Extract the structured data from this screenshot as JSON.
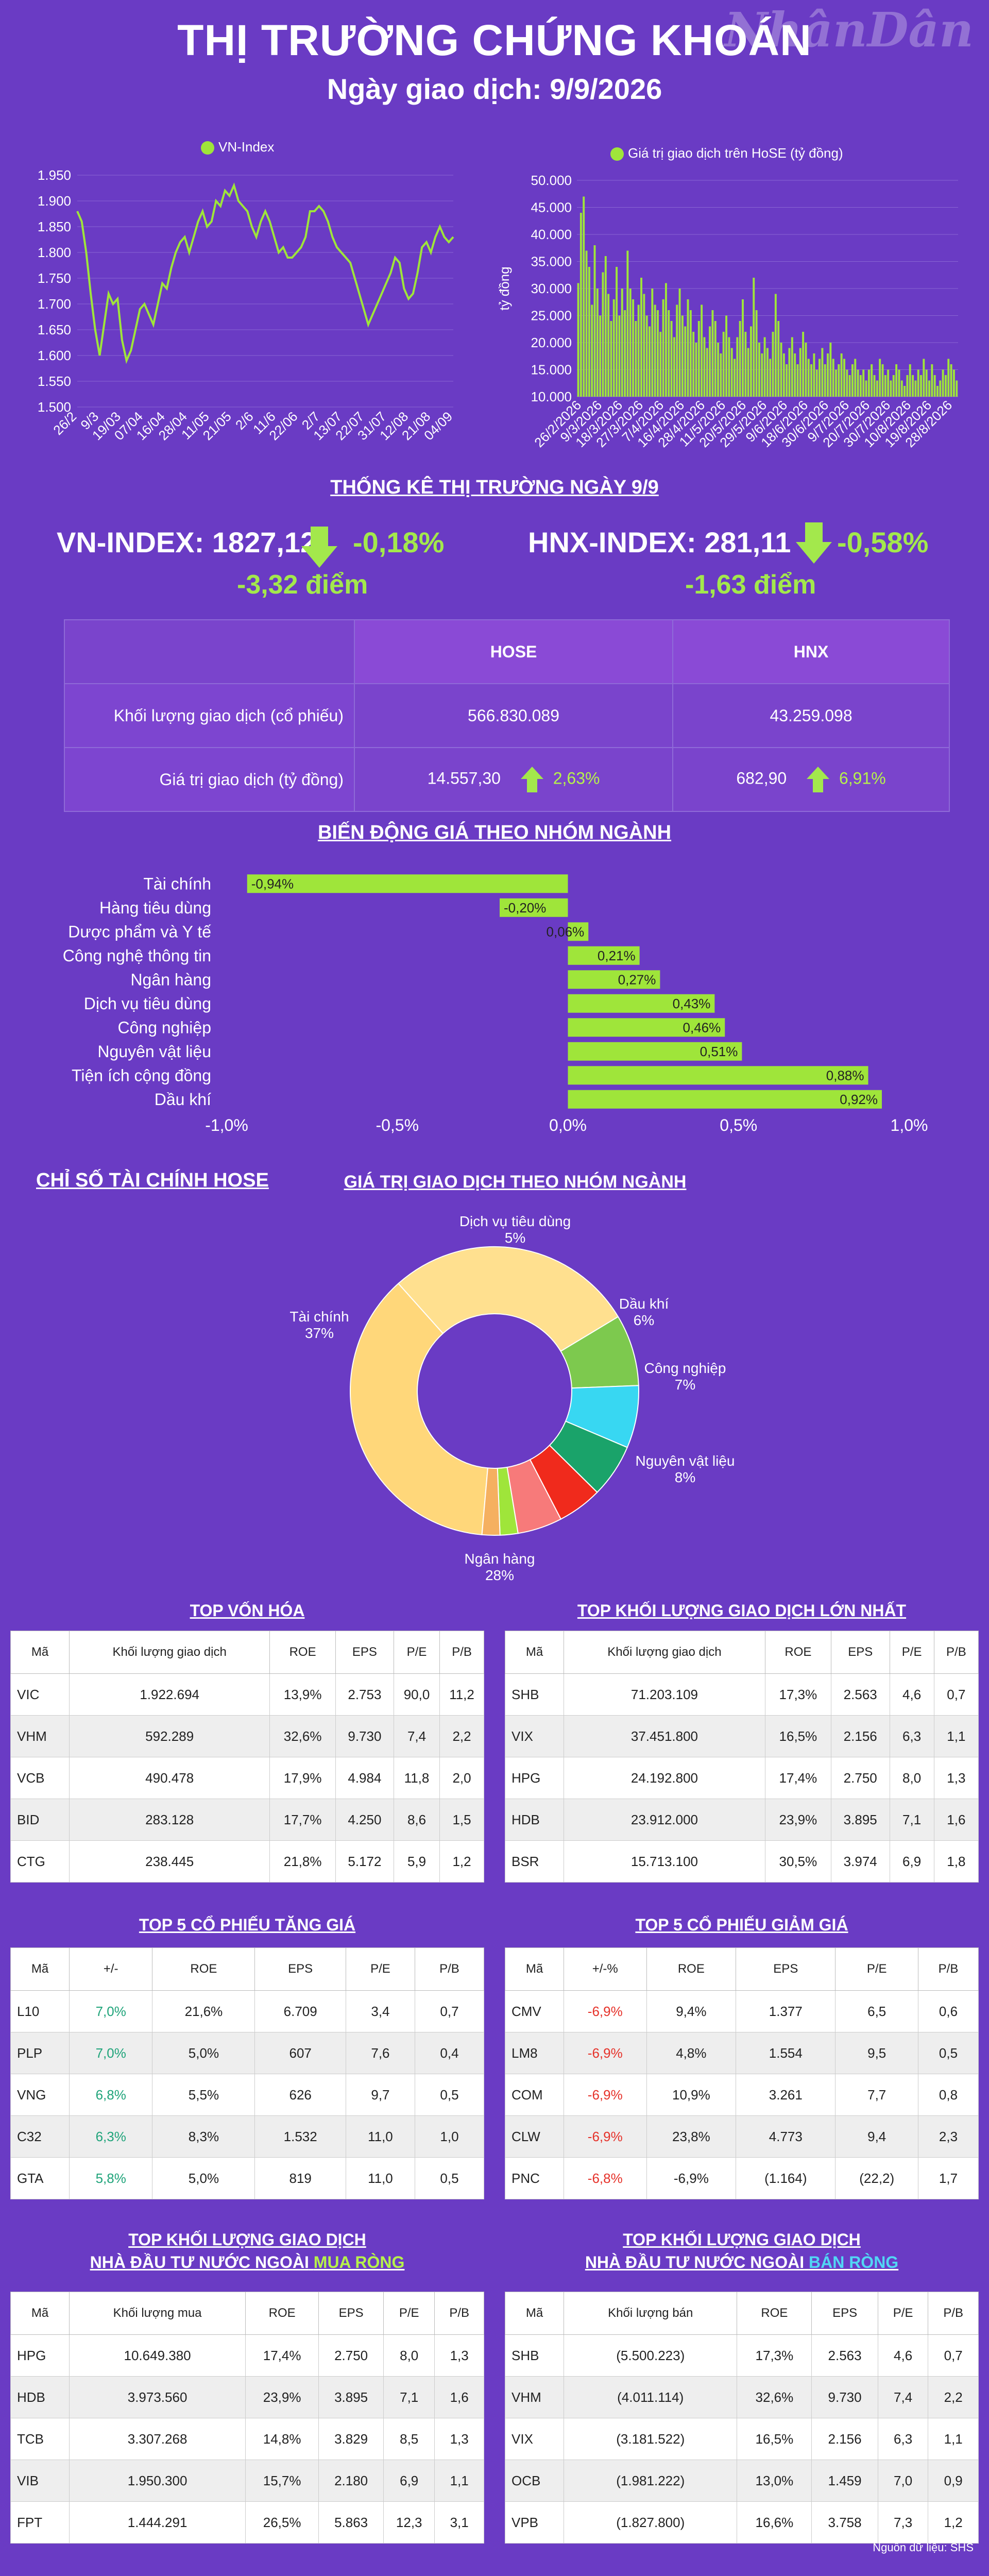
{
  "header": {
    "title": "THỊ TRƯỜNG CHỨNG KHOÁN",
    "subtitle": "Ngày giao dịch: 9/9/2026",
    "logo": "NhânDân"
  },
  "colors": {
    "background": "#6a3bc4",
    "accent": "#9fe53a",
    "up": "#1fa47a",
    "down": "#e6322a"
  },
  "chart_data": [
    {
      "type": "line",
      "legend": "VN-Index",
      "x_ticks": [
        "26/2",
        "9/3",
        "19/03",
        "07/04",
        "16/04",
        "28/04",
        "11/05",
        "21/05",
        "2/6",
        "11/6",
        "22/06",
        "2/7",
        "13/07",
        "22/07",
        "31/07",
        "12/08",
        "21/08",
        "04/09"
      ],
      "ylim": [
        1500,
        1950
      ],
      "y_ticks": [
        "1.500",
        "1.550",
        "1.600",
        "1.650",
        "1.700",
        "1.750",
        "1.800",
        "1.850",
        "1.900",
        "1.950"
      ],
      "values": [
        1880,
        1860,
        1800,
        1720,
        1650,
        1600,
        1660,
        1720,
        1700,
        1710,
        1630,
        1590,
        1610,
        1650,
        1690,
        1700,
        1680,
        1660,
        1700,
        1740,
        1730,
        1770,
        1800,
        1820,
        1830,
        1800,
        1830,
        1860,
        1880,
        1850,
        1860,
        1900,
        1890,
        1920,
        1910,
        1930,
        1900,
        1890,
        1880,
        1850,
        1830,
        1860,
        1880,
        1860,
        1830,
        1800,
        1810,
        1790,
        1790,
        1800,
        1810,
        1830,
        1880,
        1880,
        1890,
        1880,
        1860,
        1830,
        1810,
        1800,
        1790,
        1780,
        1750,
        1720,
        1690,
        1660,
        1680,
        1700,
        1720,
        1740,
        1760,
        1790,
        1780,
        1730,
        1710,
        1720,
        1760,
        1810,
        1820,
        1800,
        1830,
        1850,
        1830,
        1820,
        1830
      ]
    },
    {
      "type": "bar",
      "legend": "Giá trị giao dịch trên HoSE (tỷ đồng)",
      "ylabel": "tỷ đồng",
      "ylim": [
        10000,
        50000
      ],
      "y_ticks": [
        "10.000",
        "15.000",
        "20.000",
        "25.000",
        "30.000",
        "35.000",
        "40.000",
        "45.000",
        "50.000"
      ],
      "x_ticks": [
        "26/2/2026",
        "9/3/2026",
        "18/3/2026",
        "27/3/2026",
        "7/4/2026",
        "16/4/2026",
        "28/4/2026",
        "11/5/2026",
        "20/5/2026",
        "29/5/2026",
        "9/6/2026",
        "18/6/2026",
        "30/6/2026",
        "9/7/2026",
        "20/7/2026",
        "30/7/2026",
        "10/8/2026",
        "19/8/2026",
        "28/8/2026"
      ],
      "values": [
        31000,
        44000,
        47000,
        37000,
        34000,
        27000,
        38000,
        30000,
        25000,
        33000,
        36000,
        29000,
        24000,
        28000,
        34000,
        25000,
        30000,
        26000,
        37000,
        30000,
        28000,
        24000,
        27000,
        32000,
        29000,
        25000,
        23000,
        30000,
        27000,
        26000,
        22000,
        28000,
        31000,
        26000,
        24000,
        21000,
        27000,
        30000,
        25000,
        23000,
        28000,
        26000,
        22000,
        20000,
        24000,
        27000,
        21000,
        19000,
        23000,
        26000,
        24000,
        20000,
        18000,
        22000,
        25000,
        21000,
        19000,
        17000,
        21000,
        24000,
        28000,
        22000,
        19000,
        23000,
        32000,
        26000,
        20000,
        18000,
        21000,
        19000,
        17000,
        22000,
        29000,
        24000,
        20000,
        18000,
        16000,
        19000,
        21000,
        18000,
        16000,
        19000,
        22000,
        20000,
        17000,
        16000,
        18000,
        15000,
        17000,
        19000,
        16000,
        18000,
        20000,
        17000,
        15000,
        16000,
        18000,
        17000,
        15000,
        14000,
        16000,
        17000,
        15000,
        14000,
        15000,
        13000,
        15000,
        16000,
        14000,
        13000,
        17000,
        16000,
        14000,
        15000,
        13000,
        14000,
        16000,
        15000,
        13000,
        12000,
        14000,
        16000,
        14000,
        13000,
        15000,
        14000,
        17000,
        15000,
        13000,
        16000,
        14000,
        12000,
        13000,
        15000,
        14000,
        17000,
        16000,
        15000,
        13000
      ]
    },
    {
      "type": "bar",
      "orientation": "horizontal",
      "title": "BIẾN ĐỘNG GIÁ THEO NHÓM NGÀNH",
      "categories": [
        "Tài chính",
        "Hàng tiêu dùng",
        "Dược phẩm và Y tế",
        "Công nghệ thông tin",
        "Ngân hàng",
        "Dịch vụ tiêu dùng",
        "Công nghiệp",
        "Nguyên vật liệu",
        "Tiện ích cộng đồng",
        "Dầu khí"
      ],
      "values": [
        -0.94,
        -0.2,
        0.06,
        0.21,
        0.27,
        0.43,
        0.46,
        0.51,
        0.88,
        0.92
      ],
      "value_labels": [
        "-0,94%",
        "-0,20%",
        "0,06%",
        "0,21%",
        "0,27%",
        "0,43%",
        "0,46%",
        "0,51%",
        "0,88%",
        "0,92%"
      ],
      "xlim": [
        -1.0,
        1.0
      ],
      "x_ticks": [
        "-1,0%",
        "-0,5%",
        "0,0%",
        "0,5%",
        "1,0%"
      ]
    },
    {
      "type": "pie",
      "title": "GIÁ TRỊ GIAO DỊCH THEO NHÓM NGÀNH",
      "slices": [
        {
          "name": "Tài chính",
          "value": 37,
          "label": "37%",
          "color": "#ffd77a"
        },
        {
          "name": "Ngân hàng",
          "value": 28,
          "label": "28%",
          "color": "#ffe08f"
        },
        {
          "name": "Nguyên vật liệu",
          "value": 8,
          "label": "8%",
          "color": "#7dc94e"
        },
        {
          "name": "Công nghiệp",
          "value": 7,
          "label": "7%",
          "color": "#38d7f2"
        },
        {
          "name": "Dầu khí",
          "value": 6,
          "label": "6%",
          "color": "#1aa36a"
        },
        {
          "name": "Dịch vụ tiêu dùng",
          "value": 5,
          "label": "5%",
          "color": "#f02a1c"
        },
        {
          "name": "",
          "value": 5,
          "label": "",
          "color": "#f77a7a"
        },
        {
          "name": "",
          "value": 2,
          "label": "",
          "color": "#9fe53a"
        },
        {
          "name": "",
          "value": 2,
          "label": "",
          "color": "#f5b060"
        }
      ]
    }
  ],
  "stats_section": {
    "title": "THỐNG KÊ THỊ TRƯỜNG NGÀY 9/9",
    "vn_index": {
      "label": "VN-INDEX: 1827,12",
      "change": "-0,18%",
      "points": "-3,32 điểm"
    },
    "hnx_index": {
      "label": "HNX-INDEX: 281,11",
      "change": "-0,58%",
      "points": "-1,63 điểm"
    },
    "col_hose": "HOSE",
    "col_hnx": "HNX",
    "row_volume": {
      "label": "Khối lượng giao dịch (cổ phiếu)",
      "hose": "566.830.089",
      "hnx": "43.259.098"
    },
    "row_value": {
      "label": "Giá trị giao dịch (tỷ đồng)",
      "hose": "14.557,30",
      "hose_chg": "2,63%",
      "hnx": "682,90",
      "hnx_chg": "6,91%"
    }
  },
  "fin_title": "CHỈ SỐ TÀI CHÍNH HOSE",
  "tables": {
    "top_cap": {
      "title": "TOP VỐN HÓA",
      "headers": [
        "Mã",
        "Khối lượng giao dịch",
        "ROE",
        "EPS",
        "P/E",
        "P/B"
      ],
      "rows": [
        [
          "VIC",
          "1.922.694",
          "13,9%",
          "2.753",
          "90,0",
          "11,2"
        ],
        [
          "VHM",
          "592.289",
          "32,6%",
          "9.730",
          "7,4",
          "2,2"
        ],
        [
          "VCB",
          "490.478",
          "17,9%",
          "4.984",
          "11,8",
          "2,0"
        ],
        [
          "BID",
          "283.128",
          "17,7%",
          "4.250",
          "8,6",
          "1,5"
        ],
        [
          "CTG",
          "238.445",
          "21,8%",
          "5.172",
          "5,9",
          "1,2"
        ]
      ]
    },
    "top_volume": {
      "title": "TOP KHỐI LƯỢNG GIAO DỊCH LỚN NHẤT",
      "headers": [
        "Mã",
        "Khối lượng giao dịch",
        "ROE",
        "EPS",
        "P/E",
        "P/B"
      ],
      "rows": [
        [
          "SHB",
          "71.203.109",
          "17,3%",
          "2.563",
          "4,6",
          "0,7"
        ],
        [
          "VIX",
          "37.451.800",
          "16,5%",
          "2.156",
          "6,3",
          "1,1"
        ],
        [
          "HPG",
          "24.192.800",
          "17,4%",
          "2.750",
          "8,0",
          "1,3"
        ],
        [
          "HDB",
          "23.912.000",
          "23,9%",
          "3.895",
          "7,1",
          "1,6"
        ],
        [
          "BSR",
          "15.713.100",
          "30,5%",
          "3.974",
          "6,9",
          "1,8"
        ]
      ]
    },
    "top_gain": {
      "title": "TOP 5 CỔ PHIẾU TĂNG GIÁ",
      "headers": [
        "Mã",
        "+/-",
        "ROE",
        "EPS",
        "P/E",
        "P/B"
      ],
      "rows": [
        [
          "L10",
          "7,0%",
          "21,6%",
          "6.709",
          "3,4",
          "0,7"
        ],
        [
          "PLP",
          "7,0%",
          "5,0%",
          "607",
          "7,6",
          "0,4"
        ],
        [
          "VNG",
          "6,8%",
          "5,5%",
          "626",
          "9,7",
          "0,5"
        ],
        [
          "C32",
          "6,3%",
          "8,3%",
          "1.532",
          "11,0",
          "1,0"
        ],
        [
          "GTA",
          "5,8%",
          "5,0%",
          "819",
          "11,0",
          "0,5"
        ]
      ]
    },
    "top_loss": {
      "title": "TOP 5 CỔ PHIẾU GIẢM GIÁ",
      "headers": [
        "Mã",
        "+/-%",
        "ROE",
        "EPS",
        "P/E",
        "P/B"
      ],
      "rows": [
        [
          "CMV",
          "-6,9%",
          "9,4%",
          "1.377",
          "6,5",
          "0,6"
        ],
        [
          "LM8",
          "-6,9%",
          "4,8%",
          "1.554",
          "9,5",
          "0,5"
        ],
        [
          "COM",
          "-6,9%",
          "10,9%",
          "3.261",
          "7,7",
          "0,8"
        ],
        [
          "CLW",
          "-6,9%",
          "23,8%",
          "4.773",
          "9,4",
          "2,3"
        ],
        [
          "PNC",
          "-6,8%",
          "-6,9%",
          "(1.164)",
          "(22,2)",
          "1,7"
        ]
      ]
    },
    "foreign_buy": {
      "title_line1": "TOP KHỐI LƯỢNG GIAO DỊCH",
      "title_line2": "NHÀ ĐẦU TƯ NƯỚC NGOÀI",
      "title_hl": "MUA RÒNG",
      "headers": [
        "Mã",
        "Khối lượng mua",
        "ROE",
        "EPS",
        "P/E",
        "P/B"
      ],
      "rows": [
        [
          "HPG",
          "10.649.380",
          "17,4%",
          "2.750",
          "8,0",
          "1,3"
        ],
        [
          "HDB",
          "3.973.560",
          "23,9%",
          "3.895",
          "7,1",
          "1,6"
        ],
        [
          "TCB",
          "3.307.268",
          "14,8%",
          "3.829",
          "8,5",
          "1,3"
        ],
        [
          "VIB",
          "1.950.300",
          "15,7%",
          "2.180",
          "6,9",
          "1,1"
        ],
        [
          "FPT",
          "1.444.291",
          "26,5%",
          "5.863",
          "12,3",
          "3,1"
        ]
      ]
    },
    "foreign_sell": {
      "title_line1": "TOP KHỐI LƯỢNG GIAO DỊCH",
      "title_line2": "NHÀ ĐẦU TƯ NƯỚC NGOÀI",
      "title_hl": "BÁN RÒNG",
      "headers": [
        "Mã",
        "Khối lượng bán",
        "ROE",
        "EPS",
        "P/E",
        "P/B"
      ],
      "rows": [
        [
          "SHB",
          "(5.500.223)",
          "17,3%",
          "2.563",
          "4,6",
          "0,7"
        ],
        [
          "VHM",
          "(4.011.114)",
          "32,6%",
          "9.730",
          "7,4",
          "2,2"
        ],
        [
          "VIX",
          "(3.181.522)",
          "16,5%",
          "2.156",
          "6,3",
          "1,1"
        ],
        [
          "OCB",
          "(1.981.222)",
          "13,0%",
          "1.459",
          "7,0",
          "0,9"
        ],
        [
          "VPB",
          "(1.827.800)",
          "16,6%",
          "3.758",
          "7,3",
          "1,2"
        ]
      ]
    }
  },
  "source": "Nguồn dữ liệu: SHS"
}
